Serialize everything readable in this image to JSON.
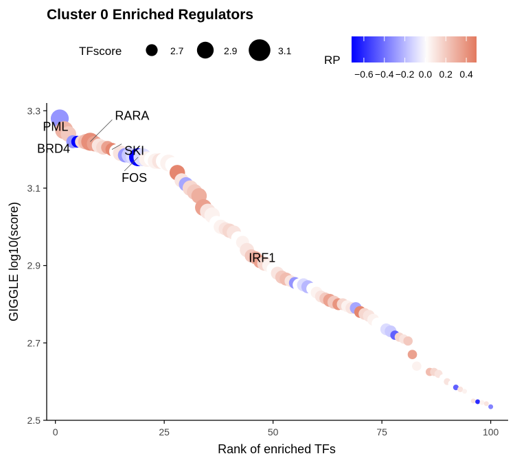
{
  "chart_data": {
    "type": "scatter",
    "title": "Cluster 0 Enriched Regulators",
    "xlabel": "Rank of enriched TFs",
    "ylabel": "GIGGLE log10(score)",
    "xlim": [
      -2,
      104
    ],
    "ylim": [
      2.5,
      3.32
    ],
    "xticks": [
      0,
      25,
      50,
      75,
      100
    ],
    "yticks": [
      2.5,
      2.7,
      2.9,
      3.1,
      3.3
    ],
    "grid": false,
    "legend_placement": "top",
    "size_legend": {
      "title": "TFscore",
      "values": [
        2.7,
        2.9,
        3.1
      ],
      "labels": [
        "2.7",
        "2.9",
        "3.1"
      ]
    },
    "color_legend": {
      "title": "RP",
      "range": [
        -0.72,
        0.5
      ],
      "ticks": [
        -0.6,
        -0.4,
        -0.2,
        0.0,
        0.2,
        0.4
      ],
      "tick_labels": [
        "−0.6",
        "−0.4",
        "−0.2",
        "0.0",
        "0.2",
        "0.4"
      ],
      "low_color": "#0000ff",
      "mid_color": "#ffffff",
      "high_color": "#e2795f"
    },
    "points": [
      {
        "x": 1,
        "y": 3.28,
        "size": 2.95,
        "rp": -0.3
      },
      {
        "x": 2,
        "y": 3.25,
        "size": 2.95,
        "rp": 0.28
      },
      {
        "x": 3,
        "y": 3.24,
        "size": 2.85,
        "rp": 0.2
      },
      {
        "x": 4,
        "y": 3.22,
        "size": 2.75,
        "rp": -0.3
      },
      {
        "x": 5,
        "y": 3.22,
        "size": 2.7,
        "rp": -0.72
      },
      {
        "x": 6,
        "y": 3.22,
        "size": 2.75,
        "rp": 0.15
      },
      {
        "x": 7,
        "y": 3.22,
        "size": 2.85,
        "rp": 0.25
      },
      {
        "x": 8,
        "y": 3.22,
        "size": 2.95,
        "rp": 0.42
      },
      {
        "x": 9,
        "y": 3.215,
        "size": 2.85,
        "rp": 0.35
      },
      {
        "x": 10,
        "y": 3.21,
        "size": 2.8,
        "rp": 0.1
      },
      {
        "x": 11,
        "y": 3.205,
        "size": 2.8,
        "rp": 0.15
      },
      {
        "x": 12,
        "y": 3.205,
        "size": 2.75,
        "rp": 0.35
      },
      {
        "x": 13,
        "y": 3.2,
        "size": 2.75,
        "rp": 0.45
      },
      {
        "x": 14,
        "y": 3.195,
        "size": 2.8,
        "rp": 0.0
      },
      {
        "x": 15,
        "y": 3.19,
        "size": 2.85,
        "rp": 0.1
      },
      {
        "x": 16,
        "y": 3.185,
        "size": 2.8,
        "rp": -0.3
      },
      {
        "x": 17,
        "y": 3.185,
        "size": 2.85,
        "rp": -0.15
      },
      {
        "x": 18,
        "y": 3.18,
        "size": 2.85,
        "rp": -0.1
      },
      {
        "x": 19,
        "y": 3.18,
        "size": 2.95,
        "rp": -0.72
      },
      {
        "x": 20,
        "y": 3.18,
        "size": 2.95,
        "rp": -0.1
      },
      {
        "x": 21,
        "y": 3.175,
        "size": 2.85,
        "rp": 0.05
      },
      {
        "x": 22,
        "y": 3.175,
        "size": 2.8,
        "rp": 0.0
      },
      {
        "x": 23,
        "y": 3.17,
        "size": 2.85,
        "rp": 0.05
      },
      {
        "x": 24,
        "y": 3.17,
        "size": 2.85,
        "rp": 0.1
      },
      {
        "x": 25,
        "y": 3.17,
        "size": 2.9,
        "rp": 0.0
      },
      {
        "x": 26,
        "y": 3.165,
        "size": 2.9,
        "rp": 0.05
      },
      {
        "x": 27,
        "y": 3.16,
        "size": 2.85,
        "rp": 0.0
      },
      {
        "x": 28,
        "y": 3.14,
        "size": 2.85,
        "rp": 0.45
      },
      {
        "x": 29,
        "y": 3.12,
        "size": 2.8,
        "rp": 0.1
      },
      {
        "x": 30,
        "y": 3.11,
        "size": 2.8,
        "rp": -0.25
      },
      {
        "x": 31,
        "y": 3.1,
        "size": 2.85,
        "rp": 0.15
      },
      {
        "x": 32,
        "y": 3.09,
        "size": 2.85,
        "rp": 0.2
      },
      {
        "x": 33,
        "y": 3.08,
        "size": 2.85,
        "rp": 0.3
      },
      {
        "x": 34,
        "y": 3.05,
        "size": 2.9,
        "rp": 0.35
      },
      {
        "x": 35,
        "y": 3.04,
        "size": 2.85,
        "rp": 0.1
      },
      {
        "x": 36,
        "y": 3.03,
        "size": 2.85,
        "rp": 0.05
      },
      {
        "x": 37,
        "y": 3.01,
        "size": 2.8,
        "rp": 0.0
      },
      {
        "x": 38,
        "y": 3.0,
        "size": 2.8,
        "rp": 0.05
      },
      {
        "x": 39,
        "y": 2.995,
        "size": 2.75,
        "rp": 0.1
      },
      {
        "x": 40,
        "y": 2.99,
        "size": 2.8,
        "rp": 0.15
      },
      {
        "x": 41,
        "y": 2.985,
        "size": 2.8,
        "rp": 0.1
      },
      {
        "x": 42,
        "y": 2.97,
        "size": 2.8,
        "rp": 0.0
      },
      {
        "x": 43,
        "y": 2.96,
        "size": 2.75,
        "rp": 0.05
      },
      {
        "x": 44,
        "y": 2.94,
        "size": 2.8,
        "rp": 0.1
      },
      {
        "x": 45,
        "y": 2.925,
        "size": 2.75,
        "rp": 0.2
      },
      {
        "x": 46,
        "y": 2.92,
        "size": 2.75,
        "rp": 0.3
      },
      {
        "x": 47,
        "y": 2.91,
        "size": 2.75,
        "rp": 0.35
      },
      {
        "x": 48,
        "y": 2.905,
        "size": 2.8,
        "rp": 0.15
      },
      {
        "x": 49,
        "y": 2.9,
        "size": 2.75,
        "rp": 0.05
      },
      {
        "x": 50,
        "y": 2.89,
        "size": 2.75,
        "rp": 0.0
      },
      {
        "x": 51,
        "y": 2.88,
        "size": 2.75,
        "rp": 0.1
      },
      {
        "x": 52,
        "y": 2.87,
        "size": 2.75,
        "rp": 0.2
      },
      {
        "x": 53,
        "y": 2.865,
        "size": 2.75,
        "rp": 0.25
      },
      {
        "x": 54,
        "y": 2.86,
        "size": 2.7,
        "rp": 0.1
      },
      {
        "x": 55,
        "y": 2.855,
        "size": 2.7,
        "rp": -0.3
      },
      {
        "x": 56,
        "y": 2.85,
        "size": 2.75,
        "rp": 0.0
      },
      {
        "x": 57,
        "y": 2.85,
        "size": 2.75,
        "rp": -0.1
      },
      {
        "x": 58,
        "y": 2.845,
        "size": 2.75,
        "rp": -0.2
      },
      {
        "x": 59,
        "y": 2.84,
        "size": 2.7,
        "rp": 0.0
      },
      {
        "x": 60,
        "y": 2.83,
        "size": 2.7,
        "rp": 0.05
      },
      {
        "x": 61,
        "y": 2.82,
        "size": 2.7,
        "rp": 0.1
      },
      {
        "x": 62,
        "y": 2.815,
        "size": 2.7,
        "rp": 0.2
      },
      {
        "x": 63,
        "y": 2.81,
        "size": 2.75,
        "rp": 0.35
      },
      {
        "x": 64,
        "y": 2.805,
        "size": 2.75,
        "rp": 0.2
      },
      {
        "x": 65,
        "y": 2.8,
        "size": 2.7,
        "rp": 0.4
      },
      {
        "x": 66,
        "y": 2.8,
        "size": 2.7,
        "rp": 0.15
      },
      {
        "x": 67,
        "y": 2.795,
        "size": 2.7,
        "rp": 0.05
      },
      {
        "x": 68,
        "y": 2.79,
        "size": 2.7,
        "rp": 0.1
      },
      {
        "x": 69,
        "y": 2.79,
        "size": 2.7,
        "rp": -0.25
      },
      {
        "x": 70,
        "y": 2.78,
        "size": 2.7,
        "rp": 0.45
      },
      {
        "x": 71,
        "y": 2.775,
        "size": 2.7,
        "rp": 0.15
      },
      {
        "x": 72,
        "y": 2.77,
        "size": 2.7,
        "rp": 0.1
      },
      {
        "x": 73,
        "y": 2.76,
        "size": 2.7,
        "rp": 0.05
      },
      {
        "x": 74,
        "y": 2.75,
        "size": 2.7,
        "rp": 0.0
      },
      {
        "x": 75,
        "y": 2.745,
        "size": 2.7,
        "rp": 0.0
      },
      {
        "x": 76,
        "y": 2.735,
        "size": 2.7,
        "rp": -0.1
      },
      {
        "x": 77,
        "y": 2.73,
        "size": 2.7,
        "rp": -0.15
      },
      {
        "x": 78,
        "y": 2.72,
        "size": 2.6,
        "rp": -0.45
      },
      {
        "x": 79,
        "y": 2.715,
        "size": 2.6,
        "rp": 0.15
      },
      {
        "x": 80,
        "y": 2.71,
        "size": 2.6,
        "rp": 0.1
      },
      {
        "x": 81,
        "y": 2.705,
        "size": 2.6,
        "rp": 0.2
      },
      {
        "x": 82,
        "y": 2.67,
        "size": 2.6,
        "rp": 0.35
      },
      {
        "x": 83,
        "y": 2.64,
        "size": 2.6,
        "rp": 0.05
      },
      {
        "x": 86,
        "y": 2.625,
        "size": 2.55,
        "rp": 0.25
      },
      {
        "x": 87,
        "y": 2.625,
        "size": 2.55,
        "rp": 0.15
      },
      {
        "x": 88,
        "y": 2.62,
        "size": 2.55,
        "rp": 0.1
      },
      {
        "x": 89,
        "y": 2.61,
        "size": 2.5,
        "rp": 0.0
      },
      {
        "x": 90,
        "y": 2.6,
        "size": 2.5,
        "rp": 0.1
      },
      {
        "x": 91,
        "y": 2.595,
        "size": 2.5,
        "rp": 0.0
      },
      {
        "x": 92,
        "y": 2.585,
        "size": 2.45,
        "rp": -0.45
      },
      {
        "x": 93,
        "y": 2.58,
        "size": 2.45,
        "rp": 0.1
      },
      {
        "x": 94,
        "y": 2.575,
        "size": 2.4,
        "rp": 0.05
      },
      {
        "x": 95,
        "y": 2.57,
        "size": 2.4,
        "rp": 0.0
      },
      {
        "x": 96,
        "y": 2.55,
        "size": 2.35,
        "rp": 0.1
      },
      {
        "x": 97,
        "y": 2.548,
        "size": 2.35,
        "rp": -0.6
      },
      {
        "x": 98,
        "y": 2.546,
        "size": 2.35,
        "rp": 0.05
      },
      {
        "x": 99,
        "y": 2.543,
        "size": 2.3,
        "rp": 0.1
      },
      {
        "x": 100,
        "y": 2.535,
        "size": 2.25,
        "rp": -0.35
      }
    ],
    "annotations": [
      {
        "label": "RARA",
        "x": 8,
        "y": 3.22,
        "line": true
      },
      {
        "label": "PML",
        "x": 5,
        "y": 3.22,
        "line": false
      },
      {
        "label": "BRD4",
        "x": 4,
        "y": 3.22,
        "line": false
      },
      {
        "label": "SKI",
        "x": 13,
        "y": 3.2,
        "line": true
      },
      {
        "label": "FOS",
        "x": 19,
        "y": 3.18,
        "line": true
      },
      {
        "label": "IRF1",
        "x": 46,
        "y": 2.92,
        "line": false
      }
    ]
  }
}
